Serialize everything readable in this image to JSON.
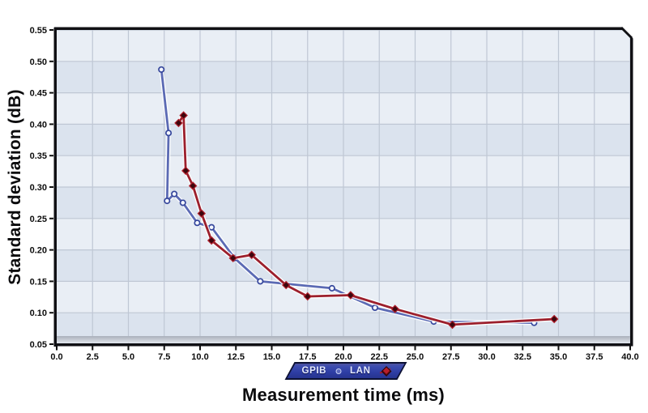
{
  "chart_data": {
    "type": "line",
    "title": "",
    "xlabel": "Measurement time (ms)",
    "ylabel": "Standard deviation (dB)",
    "xlim": [
      0,
      40
    ],
    "ylim": [
      0.05,
      0.55
    ],
    "grid": true,
    "legend_position": "bottom-center",
    "x_ticks": [
      0,
      2.5,
      5,
      7.5,
      10,
      12.5,
      15,
      17.5,
      20,
      22.5,
      25,
      27.5,
      30,
      32.5,
      35,
      37.5,
      40
    ],
    "x_tick_labels": [
      "0.0",
      "2.5",
      "5.0",
      "7.5",
      "10.0",
      "12.5",
      "15.0",
      "17.5",
      "20.0",
      "22.5",
      "25.0",
      "27.5",
      "30.0",
      "32.5",
      "35.0",
      "37.5",
      "40.0"
    ],
    "y_ticks": [
      0.05,
      0.1,
      0.15,
      0.2,
      0.25,
      0.3,
      0.35,
      0.4,
      0.45,
      0.5,
      0.55
    ],
    "y_tick_labels": [
      "0.05",
      "0.10",
      "0.15",
      "0.20",
      "0.25",
      "0.30",
      "0.35",
      "0.40",
      "0.45",
      "0.50",
      "0.55"
    ],
    "series": [
      {
        "name": "GPIB",
        "marker": "circle",
        "color": "#5b6ab4",
        "marker_fill": "#f4f7ff",
        "marker_stroke": "#36479c",
        "points": [
          [
            7.3,
            0.487
          ],
          [
            7.8,
            0.386
          ],
          [
            7.7,
            0.278
          ],
          [
            8.2,
            0.289
          ],
          [
            8.8,
            0.275
          ],
          [
            9.8,
            0.243
          ],
          [
            10.8,
            0.236
          ],
          [
            12.4,
            0.187
          ],
          [
            14.2,
            0.15
          ],
          [
            19.2,
            0.139
          ],
          [
            22.2,
            0.108
          ],
          [
            26.3,
            0.086
          ],
          [
            33.3,
            0.084
          ]
        ]
      },
      {
        "name": "LAN",
        "marker": "diamond",
        "color": "#9c1f2c",
        "marker_fill": "#3c060e",
        "marker_stroke": "#b01e2a",
        "points": [
          [
            8.5,
            0.402
          ],
          [
            8.85,
            0.414
          ],
          [
            9.0,
            0.326
          ],
          [
            9.5,
            0.302
          ],
          [
            10.1,
            0.258
          ],
          [
            10.8,
            0.215
          ],
          [
            12.3,
            0.187
          ],
          [
            13.6,
            0.192
          ],
          [
            16.0,
            0.144
          ],
          [
            17.5,
            0.126
          ],
          [
            20.5,
            0.128
          ],
          [
            23.6,
            0.106
          ],
          [
            27.6,
            0.081
          ],
          [
            34.7,
            0.09
          ]
        ]
      }
    ]
  },
  "legend": {
    "items": [
      {
        "label": "GPIB",
        "marker": "circle"
      },
      {
        "label": "LAN",
        "marker": "diamond"
      }
    ]
  },
  "colors": {
    "plot_band_light": "#e9eef5",
    "plot_band_dark": "#dbe3ee",
    "gridline": "#bfc7d4",
    "frame": "#101014",
    "gpib_line": "#5b6ab4",
    "lan_line": "#9c1f2c",
    "legend_fill": "#2e3da4"
  }
}
